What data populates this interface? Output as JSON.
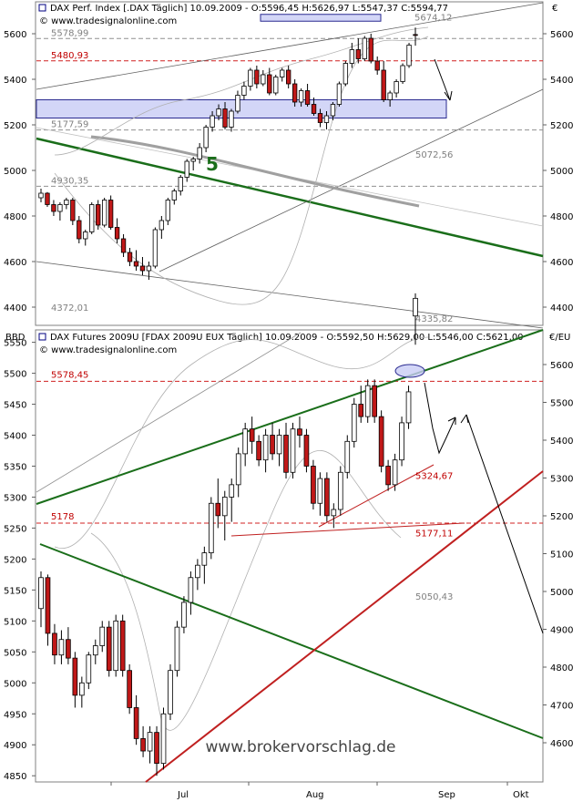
{
  "chart_data": [
    {
      "type": "candlestick",
      "title": "DAX Perf. Index [.DAX  Täglich] 10.09.2009 - O:5596,45 H:5626,97 L:5547,37 C:5594,77",
      "source": "© www.tradesignalonline.com",
      "currency": "€",
      "ylim": [
        4320,
        5740
      ],
      "yticks": [
        4400,
        4600,
        4800,
        5000,
        5200,
        5400,
        5600
      ],
      "ytick_labels": [
        "4400",
        "4600",
        "4800",
        "5000",
        "5200",
        "5400",
        "5600"
      ],
      "levels": [
        {
          "label": "5578,99",
          "value": 5578.99,
          "style": "dashed-gray"
        },
        {
          "label": "5480,93",
          "value": 5480.93,
          "style": "dashed-red"
        },
        {
          "label": "5177,59",
          "value": 5177.59,
          "style": "dashed-gray"
        },
        {
          "label": "4930,35",
          "value": 4930.35,
          "style": "dashed-gray"
        },
        {
          "label": "4372,01",
          "value": 4372.01,
          "style": "label-only"
        }
      ],
      "annotations": [
        "5674,12",
        "5072,56",
        "4335,82",
        "5"
      ],
      "zones": [
        {
          "from": 5230,
          "to": 5310,
          "label": "support zone"
        },
        {
          "from": 5655,
          "to": 5685,
          "label": "resistance zone"
        }
      ],
      "candles": [
        [
          4880,
          4920,
          4860,
          4900
        ],
        [
          4900,
          4905,
          4840,
          4850
        ],
        [
          4850,
          4870,
          4800,
          4820
        ],
        [
          4820,
          4860,
          4780,
          4850
        ],
        [
          4850,
          4880,
          4830,
          4870
        ],
        [
          4870,
          4880,
          4760,
          4780
        ],
        [
          4780,
          4800,
          4680,
          4700
        ],
        [
          4700,
          4740,
          4670,
          4730
        ],
        [
          4730,
          4860,
          4720,
          4850
        ],
        [
          4850,
          4870,
          4740,
          4760
        ],
        [
          4760,
          4880,
          4750,
          4870
        ],
        [
          4870,
          4890,
          4740,
          4750
        ],
        [
          4750,
          4790,
          4680,
          4700
        ],
        [
          4700,
          4720,
          4620,
          4640
        ],
        [
          4640,
          4660,
          4580,
          4600
        ],
        [
          4600,
          4650,
          4560,
          4580
        ],
        [
          4580,
          4620,
          4540,
          4560
        ],
        [
          4560,
          4600,
          4520,
          4580
        ],
        [
          4580,
          4750,
          4570,
          4740
        ],
        [
          4740,
          4800,
          4700,
          4780
        ],
        [
          4780,
          4880,
          4760,
          4870
        ],
        [
          4870,
          4920,
          4850,
          4910
        ],
        [
          4910,
          4980,
          4890,
          4970
        ],
        [
          4970,
          5050,
          4950,
          5040
        ],
        [
          5040,
          5060,
          5000,
          5050
        ],
        [
          5050,
          5120,
          5030,
          5100
        ],
        [
          5100,
          5200,
          5080,
          5190
        ],
        [
          5190,
          5260,
          5170,
          5240
        ],
        [
          5240,
          5290,
          5220,
          5270
        ],
        [
          5270,
          5300,
          5180,
          5190
        ],
        [
          5190,
          5270,
          5170,
          5260
        ],
        [
          5260,
          5350,
          5250,
          5330
        ],
        [
          5330,
          5390,
          5310,
          5370
        ],
        [
          5370,
          5450,
          5350,
          5440
        ],
        [
          5440,
          5460,
          5360,
          5380
        ],
        [
          5380,
          5440,
          5370,
          5420
        ],
        [
          5420,
          5450,
          5330,
          5340
        ],
        [
          5340,
          5420,
          5330,
          5410
        ],
        [
          5410,
          5450,
          5390,
          5440
        ],
        [
          5440,
          5460,
          5360,
          5380
        ],
        [
          5380,
          5400,
          5280,
          5300
        ],
        [
          5300,
          5360,
          5280,
          5350
        ],
        [
          5350,
          5380,
          5280,
          5290
        ],
        [
          5290,
          5320,
          5240,
          5250
        ],
        [
          5250,
          5270,
          5190,
          5210
        ],
        [
          5210,
          5260,
          5180,
          5240
        ],
        [
          5240,
          5300,
          5220,
          5290
        ],
        [
          5290,
          5390,
          5280,
          5380
        ],
        [
          5380,
          5480,
          5370,
          5470
        ],
        [
          5470,
          5560,
          5450,
          5530
        ],
        [
          5530,
          5580,
          5470,
          5490
        ],
        [
          5490,
          5590,
          5480,
          5580
        ],
        [
          5580,
          5600,
          5470,
          5480
        ],
        [
          5480,
          5500,
          5420,
          5440
        ],
        [
          5440,
          5480,
          5300,
          5310
        ],
        [
          5310,
          5350,
          5280,
          5340
        ],
        [
          5340,
          5400,
          5320,
          5390
        ],
        [
          5390,
          5470,
          5380,
          5460
        ],
        [
          5460,
          5560,
          5450,
          5550
        ],
        [
          5596.45,
          5626.97,
          5547.37,
          5594.77
        ]
      ]
    },
    {
      "type": "candlestick",
      "title": "DAX Futures 2009U [FDAX 2009U EUX  Täglich] 10.09.2009 - O:5592,50 H:5629,00 L:5546,00 C:5621,00",
      "source": "© www.tradesignalonline.com",
      "left_axis_title": "BBD",
      "right_axis_title": "€/EU",
      "ylim": [
        4840,
        5570
      ],
      "yticks_left": [
        4850,
        4900,
        4950,
        5000,
        5050,
        5100,
        5150,
        5200,
        5250,
        5300,
        5350,
        5400,
        5450,
        5500,
        5550
      ],
      "ytick_labels_left": [
        "4850",
        "4900",
        "4950",
        "5000",
        "5050",
        "5100",
        "5150",
        "5200",
        "5250",
        "5300",
        "5350",
        "5400",
        "5450",
        "5500",
        "5550"
      ],
      "yticks_right_labels": [
        "4600",
        "4700",
        "4800",
        "4900",
        "5000",
        "5100",
        "5200",
        "5300",
        "5400",
        "5500",
        "5600"
      ],
      "xtick_labels": [
        "Jul",
        "Aug",
        "Sep",
        "Okt"
      ],
      "levels": [
        {
          "label": "5578,45",
          "value": 5487,
          "style": "dashed-red"
        },
        {
          "label": "5178",
          "value": 5258,
          "style": "dashed-red"
        },
        {
          "label": "5177,11",
          "value": 5257,
          "style": "dashed-red"
        }
      ],
      "annotations": [
        "5324,67",
        "5050,43"
      ],
      "watermark": "www.brokervorschlag.de",
      "candles": [
        [
          5120,
          5180,
          5090,
          5170
        ],
        [
          5170,
          5175,
          5060,
          5080
        ],
        [
          5080,
          5095,
          5030,
          5045
        ],
        [
          5045,
          5085,
          5030,
          5070
        ],
        [
          5070,
          5090,
          5030,
          5040
        ],
        [
          5040,
          5050,
          4960,
          4980
        ],
        [
          4980,
          5010,
          4960,
          5000
        ],
        [
          5000,
          5050,
          4990,
          5045
        ],
        [
          5045,
          5070,
          5030,
          5060
        ],
        [
          5060,
          5100,
          5050,
          5090
        ],
        [
          5090,
          5100,
          5010,
          5020
        ],
        [
          5020,
          5110,
          5010,
          5100
        ],
        [
          5100,
          5110,
          5010,
          5020
        ],
        [
          5020,
          5030,
          4950,
          4960
        ],
        [
          4960,
          4980,
          4900,
          4910
        ],
        [
          4910,
          4930,
          4880,
          4890
        ],
        [
          4890,
          4930,
          4870,
          4920
        ],
        [
          4920,
          4930,
          4850,
          4870
        ],
        [
          4870,
          4960,
          4860,
          4950
        ],
        [
          4950,
          5030,
          4940,
          5020
        ],
        [
          5020,
          5100,
          5010,
          5090
        ],
        [
          5090,
          5140,
          5080,
          5130
        ],
        [
          5130,
          5180,
          5110,
          5170
        ],
        [
          5170,
          5200,
          5150,
          5190
        ],
        [
          5190,
          5220,
          5160,
          5210
        ],
        [
          5210,
          5300,
          5200,
          5290
        ],
        [
          5290,
          5330,
          5250,
          5270
        ],
        [
          5270,
          5310,
          5230,
          5300
        ],
        [
          5300,
          5330,
          5260,
          5320
        ],
        [
          5320,
          5380,
          5300,
          5370
        ],
        [
          5370,
          5420,
          5350,
          5410
        ],
        [
          5410,
          5430,
          5370,
          5390
        ],
        [
          5390,
          5400,
          5350,
          5360
        ],
        [
          5360,
          5410,
          5340,
          5400
        ],
        [
          5400,
          5420,
          5360,
          5370
        ],
        [
          5370,
          5410,
          5350,
          5400
        ],
        [
          5400,
          5420,
          5330,
          5340
        ],
        [
          5340,
          5420,
          5330,
          5410
        ],
        [
          5410,
          5430,
          5380,
          5400
        ],
        [
          5400,
          5410,
          5340,
          5350
        ],
        [
          5350,
          5360,
          5280,
          5290
        ],
        [
          5290,
          5340,
          5270,
          5330
        ],
        [
          5330,
          5340,
          5260,
          5270
        ],
        [
          5270,
          5290,
          5250,
          5280
        ],
        [
          5280,
          5350,
          5270,
          5340
        ],
        [
          5340,
          5400,
          5330,
          5390
        ],
        [
          5390,
          5460,
          5380,
          5450
        ],
        [
          5450,
          5480,
          5420,
          5430
        ],
        [
          5430,
          5490,
          5420,
          5480
        ],
        [
          5480,
          5490,
          5420,
          5430
        ],
        [
          5430,
          5440,
          5340,
          5350
        ],
        [
          5350,
          5360,
          5310,
          5320
        ],
        [
          5320,
          5370,
          5310,
          5360
        ],
        [
          5360,
          5430,
          5350,
          5420
        ],
        [
          5420,
          5480,
          5410,
          5470
        ],
        [
          5592.5,
          5629,
          5546,
          5621
        ]
      ]
    }
  ]
}
